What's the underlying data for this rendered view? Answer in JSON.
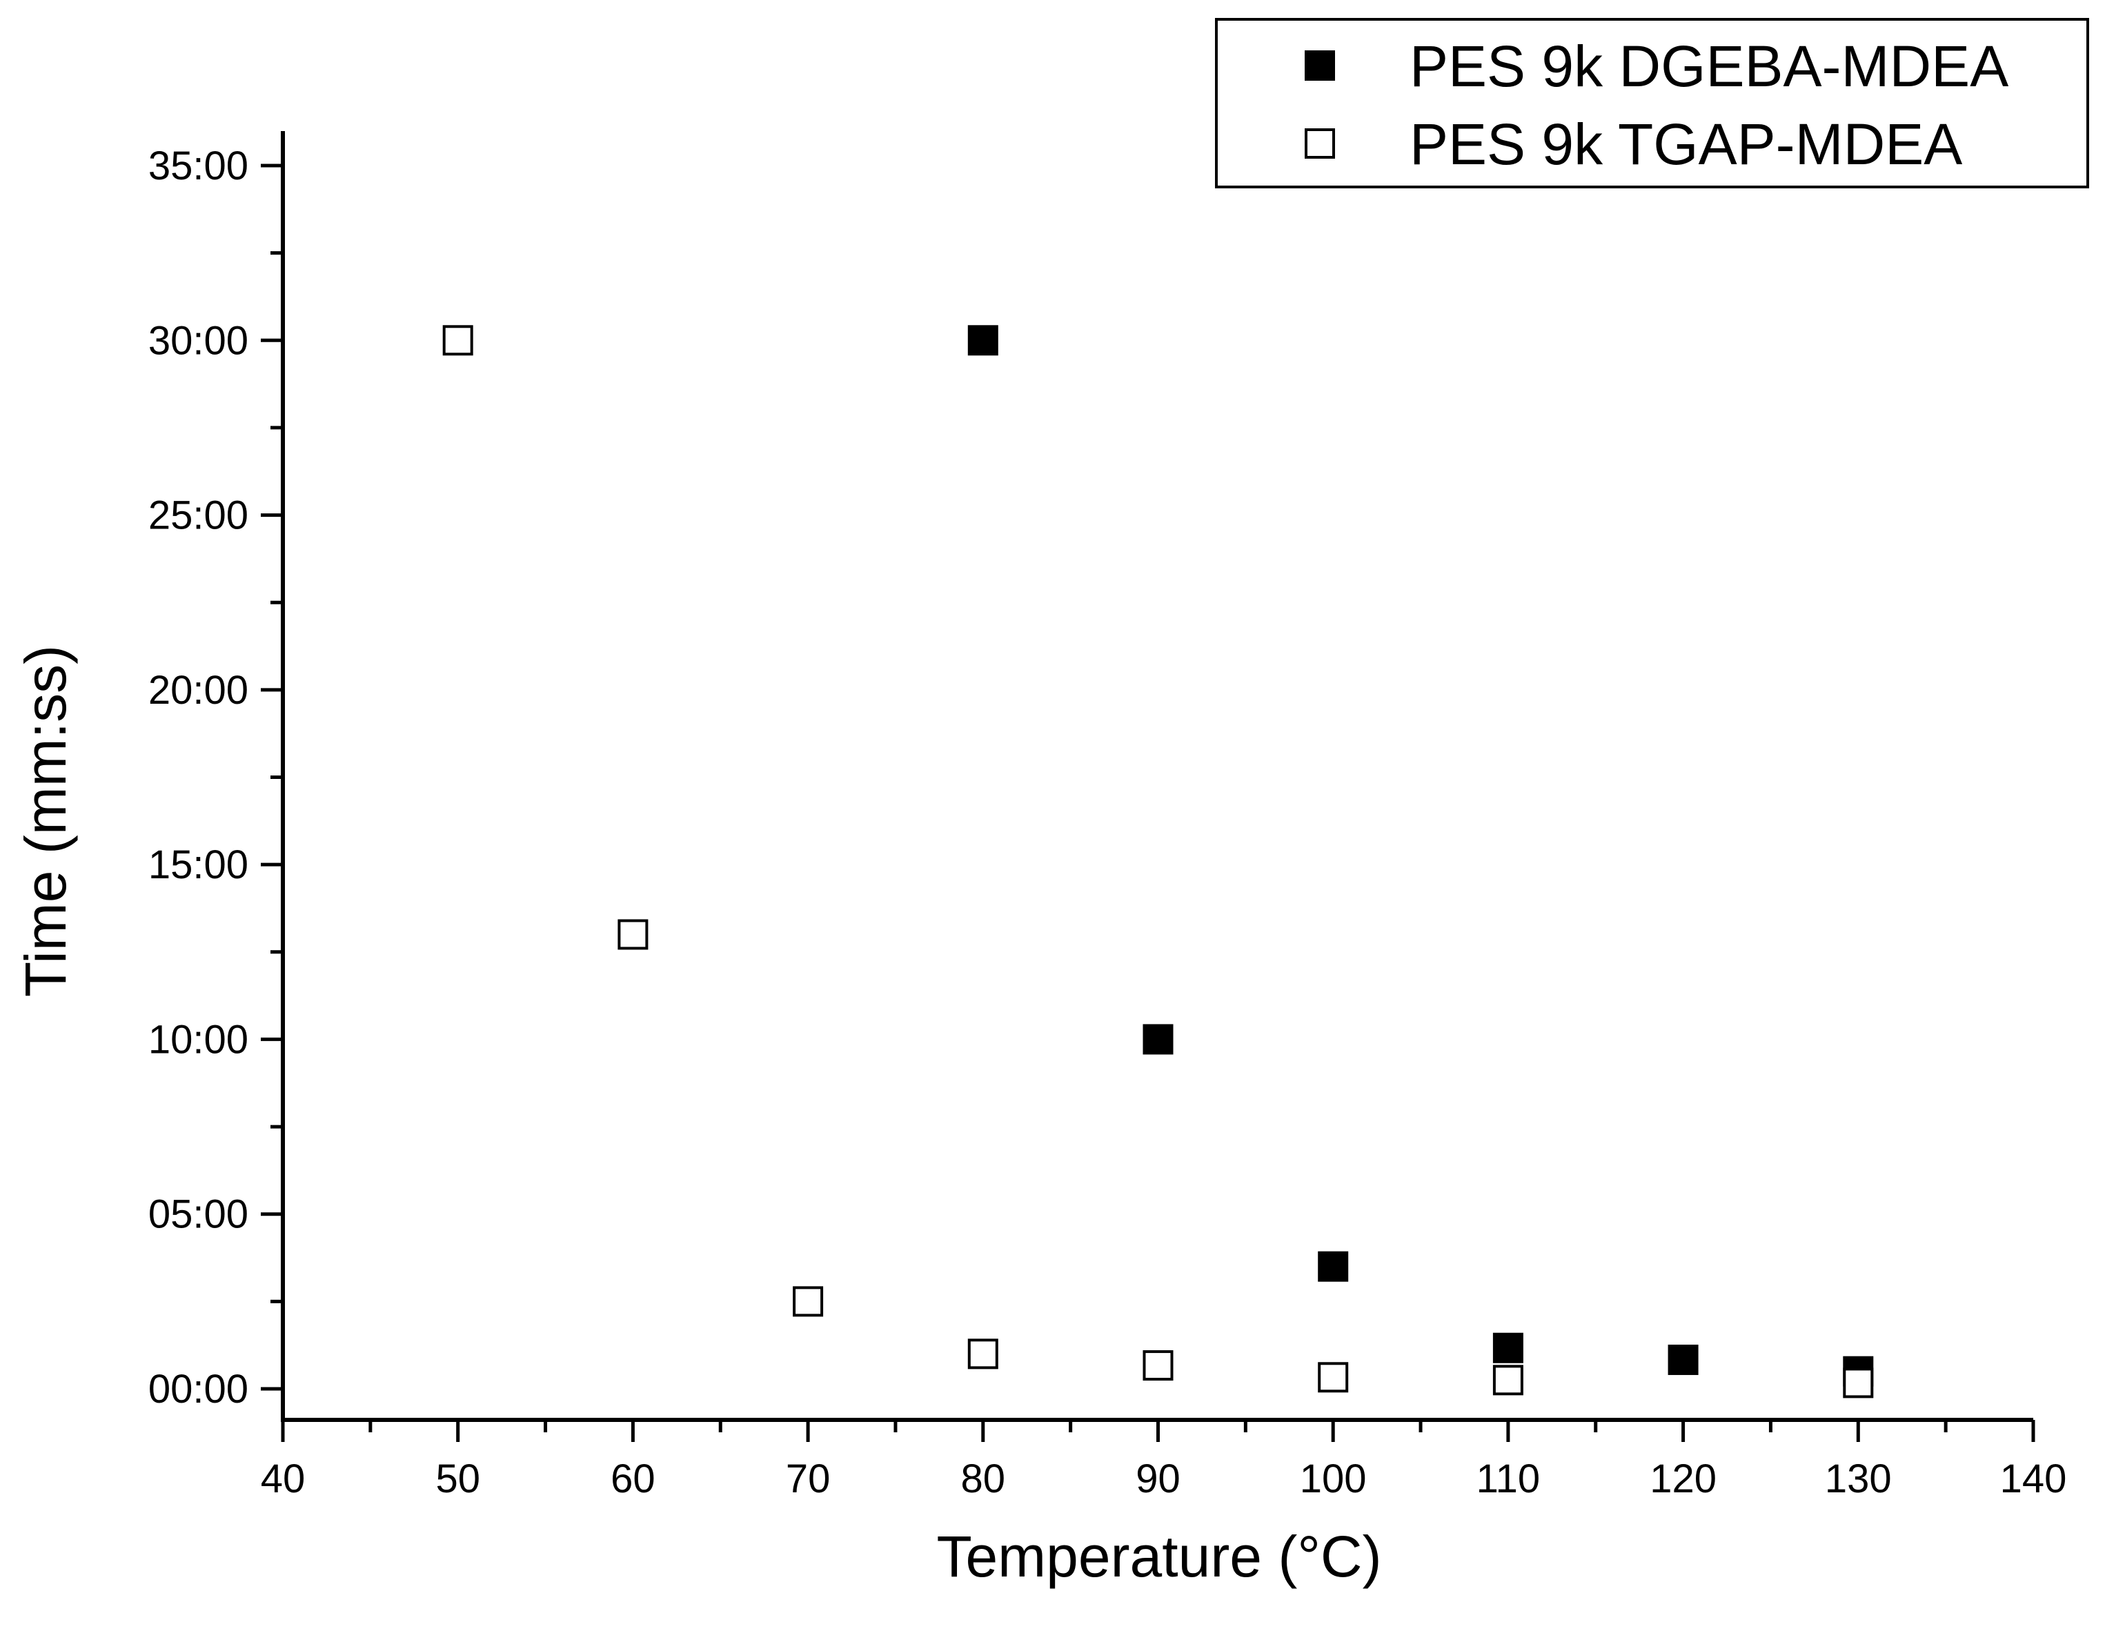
{
  "chart_data": {
    "type": "scatter",
    "title": "",
    "xlabel": "Temperature (°C)",
    "ylabel": "Time (mm:ss)",
    "xlim": [
      40,
      140
    ],
    "ylim": [
      0,
      35
    ],
    "x_ticks": [
      40,
      50,
      60,
      70,
      80,
      90,
      100,
      110,
      120,
      130,
      140
    ],
    "x_tick_labels": [
      "40",
      "50",
      "60",
      "70",
      "80",
      "90",
      "100",
      "110",
      "120",
      "130",
      "140"
    ],
    "y_ticks": [
      0,
      5,
      10,
      15,
      20,
      25,
      30,
      35
    ],
    "y_tick_labels": [
      "00:00",
      "05:00",
      "10:00",
      "15:00",
      "20:00",
      "25:00",
      "30:00",
      "35:00"
    ],
    "grid": false,
    "legend_position": "top-right",
    "series": [
      {
        "name": "PES 9k DGEBA-MDEA",
        "marker": "filled-square",
        "color": "#000000",
        "x": [
          80,
          90,
          100,
          110,
          120,
          130
        ],
        "y": [
          30.0,
          10.0,
          3.5,
          1.17,
          0.83,
          0.5
        ]
      },
      {
        "name": "PES 9k TGAP-MDEA",
        "marker": "open-square",
        "color": "#000000",
        "x": [
          50,
          60,
          70,
          80,
          90,
          100,
          110,
          120,
          130
        ],
        "y": [
          30.0,
          13.0,
          2.5,
          1.0,
          0.67,
          0.33,
          0.25,
          null,
          0.17
        ]
      }
    ]
  }
}
